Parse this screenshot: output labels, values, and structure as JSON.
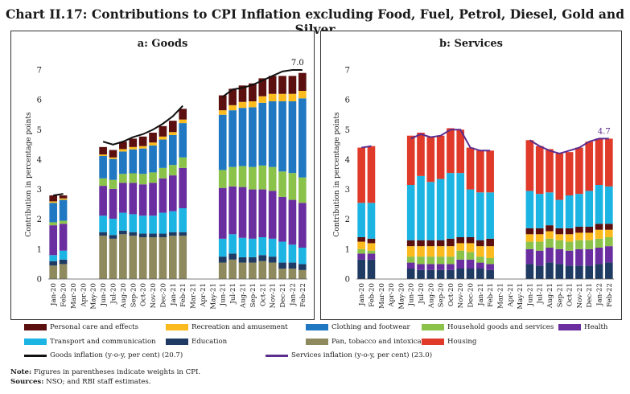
{
  "title": "Chart II.17: Contributions to CPI Inflation excluding Food, Fuel, Petrol, Diesel, Gold and Silver",
  "colors": {
    "personal_care": "#5b0f0f",
    "recreation": "#fbbb1f",
    "clothing": "#1f78c1",
    "household": "#8bc34a",
    "health": "#6a2ea0",
    "transport": "#1cb4e3",
    "education": "#1f3a63",
    "pan": "#8e8a5e",
    "housing": "#e03a2a",
    "goods_line": "#111111",
    "services_line": "#5b2d8e"
  },
  "legend": [
    {
      "key": "personal_care",
      "label": "Personal care and effects"
    },
    {
      "key": "recreation",
      "label": "Recreation and amusement"
    },
    {
      "key": "clothing",
      "label": "Clothing and footwear"
    },
    {
      "key": "household",
      "label": "Household goods and services"
    },
    {
      "key": "health",
      "label": "Health"
    },
    {
      "key": "transport",
      "label": "Transport and communication"
    },
    {
      "key": "education",
      "label": "Education"
    },
    {
      "key": "pan",
      "label": "Pan, tobacco and intoxicants"
    },
    {
      "key": "housing",
      "label": "Housing"
    },
    {
      "key": "goods_line",
      "label": "Goods inflation (y-o-y, per cent) (20.7)"
    },
    {
      "key": "services_line",
      "label": "Services inflation (y-o-y, per cent) (23.0)"
    }
  ],
  "note_label": "Note:",
  "note_text": "Figures in parentheses indicate weights in CPI.",
  "sources_label": "Sources:",
  "sources_text": "NSO; and RBI staff estimates.",
  "chart_data": [
    {
      "type": "bar",
      "stacked": true,
      "title": "a: Goods",
      "ylabel": "Contribution in percentage points",
      "ylim": [
        0,
        7
      ],
      "yticks": [
        0,
        1,
        2,
        3,
        4,
        5,
        6,
        7
      ],
      "categories": [
        "Jan-20",
        "Feb-20",
        "Mar-20",
        "Apr-20",
        "May-20",
        "Jun-20",
        "Jul-20",
        "Aug-20",
        "Sep-20",
        "Oct-20",
        "Nov-20",
        "Dec-20",
        "Jan-21",
        "Feb-21",
        "Mar-21",
        "Apr-21",
        "May-21",
        "Jun-21",
        "Jul-21",
        "Aug-21",
        "Sep-21",
        "Oct-21",
        "Nov-21",
        "Dec-21",
        "Jan-22",
        "Feb-22"
      ],
      "xtick_labels": [
        "Jan-20",
        "Feb-20",
        "Mar-20",
        "Apr-20",
        "May-20",
        "Jun-20",
        "Jul-20",
        "Aug-20",
        "Sep-20",
        "Oct-20",
        "Nov-20",
        "Dec-20",
        "Jan-21",
        "Feb-21",
        "Mar-21",
        "Apr-21",
        "May-21",
        "Jun-21",
        "Jul-21",
        "Aug-21",
        "Sep-21",
        "Oct-21",
        "Nov-21",
        "Dec-21",
        "Jan-22",
        "Feb-22"
      ],
      "series": [
        {
          "key": "pan",
          "name": "Pan, tobacco and intoxicants",
          "values": [
            0.45,
            0.5,
            null,
            null,
            null,
            1.45,
            1.35,
            1.5,
            1.45,
            1.4,
            1.4,
            1.4,
            1.45,
            1.45,
            null,
            null,
            null,
            0.55,
            0.65,
            0.55,
            0.55,
            0.6,
            0.55,
            0.35,
            0.35,
            0.3
          ]
        },
        {
          "key": "education",
          "name": "Education",
          "values": [
            0.15,
            0.15,
            null,
            null,
            null,
            0.12,
            0.12,
            0.12,
            0.12,
            0.12,
            0.12,
            0.12,
            0.12,
            0.12,
            null,
            null,
            null,
            0.2,
            0.2,
            0.18,
            0.18,
            0.2,
            0.2,
            0.2,
            0.2,
            0.2
          ]
        },
        {
          "key": "transport",
          "name": "Transport and communication",
          "values": [
            0.2,
            0.3,
            null,
            null,
            null,
            0.55,
            0.55,
            0.6,
            0.6,
            0.6,
            0.6,
            0.7,
            0.7,
            0.8,
            null,
            null,
            null,
            0.6,
            0.65,
            0.65,
            0.62,
            0.6,
            0.6,
            0.7,
            0.6,
            0.55
          ]
        },
        {
          "key": "health",
          "name": "Health",
          "values": [
            1.0,
            0.9,
            null,
            null,
            null,
            1.0,
            1.0,
            1.0,
            1.05,
            1.05,
            1.1,
            1.15,
            1.2,
            1.35,
            null,
            null,
            null,
            1.7,
            1.6,
            1.7,
            1.65,
            1.6,
            1.6,
            1.5,
            1.5,
            1.5
          ]
        },
        {
          "key": "household",
          "name": "Household goods and services",
          "values": [
            0.1,
            0.1,
            null,
            null,
            null,
            0.25,
            0.3,
            0.3,
            0.32,
            0.35,
            0.35,
            0.35,
            0.35,
            0.35,
            null,
            null,
            null,
            0.6,
            0.65,
            0.7,
            0.75,
            0.8,
            0.8,
            0.85,
            0.9,
            0.85
          ]
        },
        {
          "key": "clothing",
          "name": "Clothing and footwear",
          "values": [
            0.65,
            0.7,
            null,
            null,
            null,
            0.75,
            0.7,
            0.75,
            0.8,
            0.85,
            0.9,
            0.95,
            1.0,
            1.15,
            null,
            null,
            null,
            1.85,
            1.9,
            1.95,
            2.0,
            2.1,
            2.2,
            2.35,
            2.4,
            2.65
          ]
        },
        {
          "key": "recreation",
          "name": "Recreation and amusement",
          "values": [
            0.05,
            0.05,
            null,
            null,
            null,
            0.05,
            0.05,
            0.08,
            0.08,
            0.08,
            0.1,
            0.1,
            0.1,
            0.12,
            null,
            null,
            null,
            0.15,
            0.17,
            0.2,
            0.2,
            0.22,
            0.25,
            0.25,
            0.25,
            0.25
          ]
        },
        {
          "key": "personal_care",
          "name": "Personal care and effects",
          "values": [
            0.2,
            0.1,
            null,
            null,
            null,
            0.25,
            0.25,
            0.25,
            0.28,
            0.32,
            0.33,
            0.35,
            0.38,
            0.36,
            null,
            null,
            null,
            0.5,
            0.55,
            0.55,
            0.6,
            0.6,
            0.6,
            0.6,
            0.6,
            0.6
          ]
        }
      ],
      "line": {
        "key": "goods_line",
        "name": "Goods inflation (y-o-y, per cent) (20.7)",
        "values": [
          2.8,
          2.85,
          null,
          null,
          null,
          4.6,
          4.5,
          4.6,
          4.75,
          4.85,
          5.0,
          5.2,
          5.45,
          5.8,
          null,
          null,
          null,
          6.1,
          6.35,
          6.4,
          6.5,
          6.65,
          6.8,
          6.95,
          7.0,
          7.0
        ]
      },
      "annotation": "7.0"
    },
    {
      "type": "bar",
      "stacked": true,
      "title": "b: Services",
      "ylabel": "Contribution in percentage points",
      "ylim": [
        0,
        7
      ],
      "yticks": [
        0,
        1,
        2,
        3,
        4,
        5,
        6,
        7
      ],
      "categories": [
        "Jan-20",
        "Feb-20",
        "Mar-20",
        "Apr-20",
        "May-20",
        "Jun-20",
        "Jul-20",
        "Aug-20",
        "Sep-20",
        "Oct-20",
        "Nov-20",
        "Dec-20",
        "Jan-21",
        "Feb-21",
        "Mar-21",
        "Apr-21",
        "May-21",
        "Jun-21",
        "Jul-21",
        "Aug-21",
        "Sep-21",
        "Oct-21",
        "Nov-21",
        "Dec-21",
        "Jan-22",
        "Feb-22"
      ],
      "xtick_labels": [
        "Jan-20",
        "Feb-20",
        "Mar-20",
        "Apr-20",
        "May-20",
        "Jun-20",
        "Jul-20",
        "Aug-20",
        "Sep-20",
        "Oct-20",
        "Nov-20",
        "Dec-20",
        "Jan-21",
        "Feb-21",
        "Mar-21",
        "Apr-21",
        "May-21",
        "Jun-21",
        "Jul-21",
        "Aug-21",
        "Sep-21",
        "Oct-21",
        "Nov-21",
        "Dec-21",
        "Jan-22",
        "Feb-22"
      ],
      "series": [
        {
          "key": "education",
          "name": "Education",
          "values": [
            0.65,
            0.65,
            null,
            null,
            null,
            0.35,
            0.3,
            0.3,
            0.3,
            0.3,
            0.35,
            0.35,
            0.35,
            0.3,
            null,
            null,
            null,
            0.5,
            0.45,
            0.55,
            0.5,
            0.45,
            0.45,
            0.45,
            0.5,
            0.55
          ]
        },
        {
          "key": "health",
          "name": "Health",
          "values": [
            0.2,
            0.2,
            null,
            null,
            null,
            0.2,
            0.2,
            0.2,
            0.2,
            0.2,
            0.3,
            0.3,
            0.2,
            0.2,
            null,
            null,
            null,
            0.5,
            0.5,
            0.5,
            0.5,
            0.5,
            0.55,
            0.55,
            0.55,
            0.55
          ]
        },
        {
          "key": "household",
          "name": "Household goods and services",
          "values": [
            0.15,
            0.1,
            null,
            null,
            null,
            0.2,
            0.25,
            0.25,
            0.25,
            0.25,
            0.3,
            0.25,
            0.2,
            0.2,
            null,
            null,
            null,
            0.25,
            0.3,
            0.3,
            0.3,
            0.3,
            0.3,
            0.3,
            0.3,
            0.3
          ]
        },
        {
          "key": "recreation",
          "name": "Recreation and amusement",
          "values": [
            0.25,
            0.25,
            null,
            null,
            null,
            0.35,
            0.35,
            0.35,
            0.35,
            0.35,
            0.25,
            0.3,
            0.35,
            0.4,
            null,
            null,
            null,
            0.25,
            0.25,
            0.25,
            0.2,
            0.25,
            0.25,
            0.25,
            0.3,
            0.25
          ]
        },
        {
          "key": "personal_care",
          "name": "Personal care and effects",
          "values": [
            0.15,
            0.15,
            null,
            null,
            null,
            0.2,
            0.2,
            0.2,
            0.2,
            0.25,
            0.2,
            0.2,
            0.2,
            0.25,
            null,
            null,
            null,
            0.2,
            0.2,
            0.2,
            0.2,
            0.2,
            0.2,
            0.2,
            0.2,
            0.2
          ]
        },
        {
          "key": "transport",
          "name": "Transport and communication",
          "values": [
            1.15,
            1.2,
            null,
            null,
            null,
            1.85,
            2.15,
            1.95,
            2.05,
            2.2,
            2.15,
            1.6,
            1.6,
            1.55,
            null,
            null,
            null,
            1.25,
            1.15,
            1.1,
            0.95,
            1.1,
            1.1,
            1.2,
            1.3,
            1.25
          ]
        },
        {
          "key": "housing",
          "name": "Housing",
          "values": [
            1.85,
            1.9,
            null,
            null,
            null,
            1.65,
            1.45,
            1.5,
            1.45,
            1.5,
            1.45,
            1.4,
            1.4,
            1.4,
            null,
            null,
            null,
            1.7,
            1.6,
            1.45,
            1.55,
            1.45,
            1.55,
            1.65,
            1.55,
            1.6
          ]
        }
      ],
      "line": {
        "key": "services_line",
        "name": "Services inflation (y-o-y, per cent) (23.0)",
        "values": [
          4.4,
          4.45,
          null,
          null,
          null,
          4.7,
          4.85,
          4.75,
          4.8,
          5.0,
          5.0,
          4.4,
          4.3,
          4.3,
          null,
          null,
          null,
          4.65,
          4.45,
          4.3,
          4.2,
          4.3,
          4.4,
          4.6,
          4.7,
          4.7
        ]
      },
      "annotation": "4.7"
    }
  ]
}
